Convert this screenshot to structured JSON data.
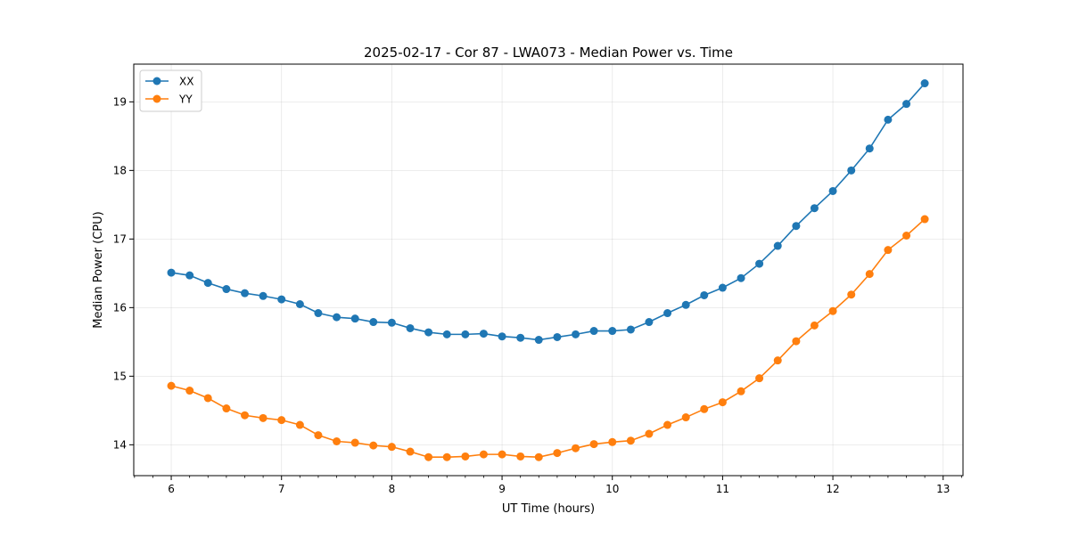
{
  "chart_data": {
    "type": "line",
    "title": "2025-02-17 - Cor 87 - LWA073 - Median Power vs. Time",
    "xlabel": "UT Time (hours)",
    "ylabel": "Median Power (CPU)",
    "xlim": [
      5.66,
      13.18
    ],
    "ylim": [
      13.55,
      19.55
    ],
    "xticks": [
      6,
      7,
      8,
      9,
      10,
      11,
      12,
      13
    ],
    "yticks": [
      14,
      15,
      16,
      17,
      18,
      19
    ],
    "grid": true,
    "legend_position": "top-left",
    "x": [
      6.0,
      6.167,
      6.333,
      6.5,
      6.667,
      6.833,
      7.0,
      7.167,
      7.333,
      7.5,
      7.667,
      7.833,
      8.0,
      8.167,
      8.333,
      8.5,
      8.667,
      8.833,
      9.0,
      9.167,
      9.333,
      9.5,
      9.667,
      9.833,
      10.0,
      10.167,
      10.333,
      10.5,
      10.667,
      10.833,
      11.0,
      11.167,
      11.333,
      11.5,
      11.667,
      11.833,
      12.0,
      12.167,
      12.333,
      12.5,
      12.667,
      12.833
    ],
    "series": [
      {
        "name": "XX",
        "color": "#1f77b4",
        "values": [
          16.51,
          16.47,
          16.36,
          16.27,
          16.21,
          16.17,
          16.12,
          16.05,
          15.92,
          15.86,
          15.84,
          15.79,
          15.78,
          15.7,
          15.64,
          15.61,
          15.61,
          15.62,
          15.58,
          15.56,
          15.53,
          15.57,
          15.61,
          15.66,
          15.66,
          15.68,
          15.79,
          15.92,
          16.04,
          16.18,
          16.29,
          16.43,
          16.64,
          16.9,
          17.19,
          17.45,
          17.7,
          18.0,
          18.32,
          18.74,
          18.97,
          19.27
        ]
      },
      {
        "name": "YY",
        "color": "#ff7f0e",
        "values": [
          14.86,
          14.79,
          14.68,
          14.53,
          14.43,
          14.39,
          14.36,
          14.29,
          14.14,
          14.05,
          14.03,
          13.99,
          13.97,
          13.9,
          13.82,
          13.82,
          13.83,
          13.86,
          13.86,
          13.83,
          13.82,
          13.88,
          13.95,
          14.01,
          14.04,
          14.06,
          14.16,
          14.29,
          14.4,
          14.52,
          14.62,
          14.78,
          14.97,
          15.23,
          15.51,
          15.74,
          15.95,
          16.19,
          16.49,
          16.84,
          17.05,
          17.29
        ]
      }
    ]
  }
}
